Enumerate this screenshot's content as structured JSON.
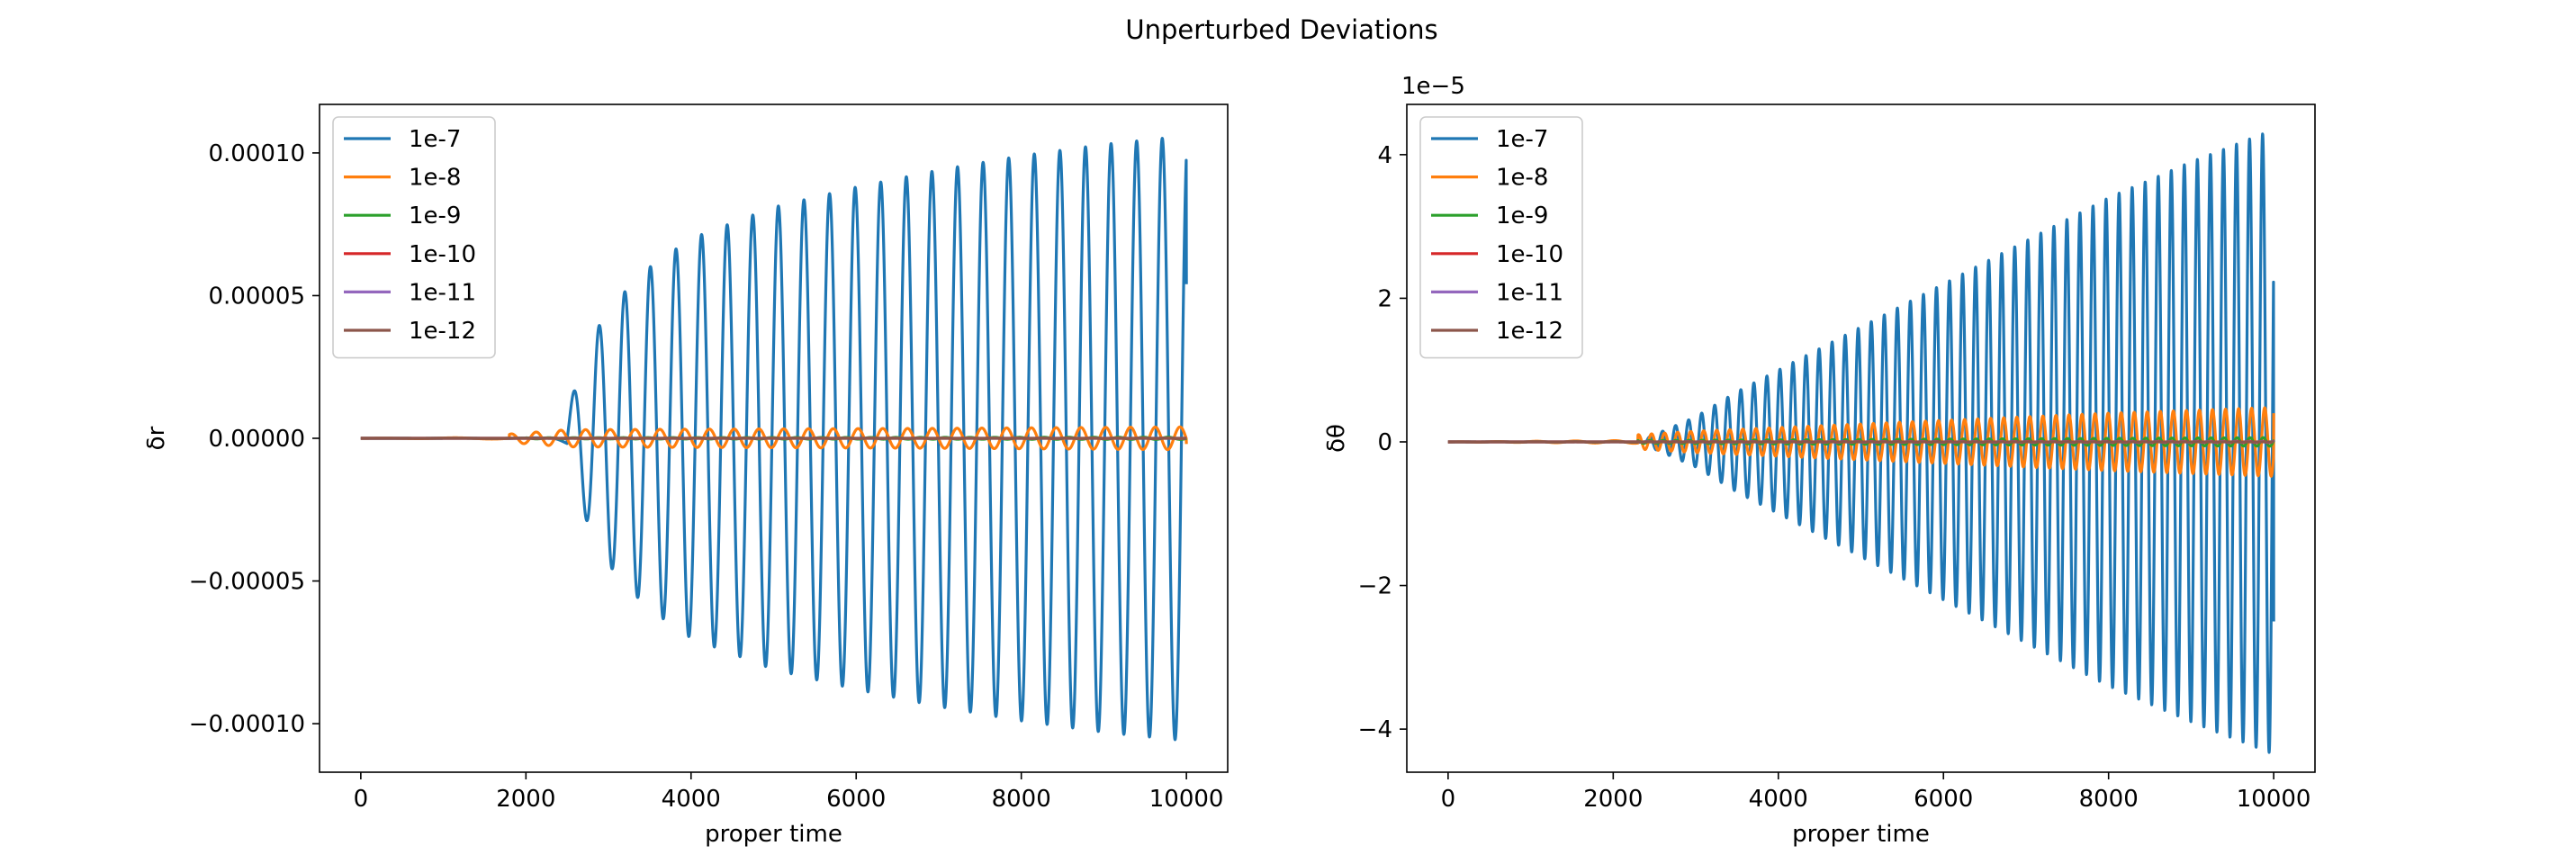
{
  "figure": {
    "suptitle": "Unperturbed Deviations"
  },
  "chart_data": [
    {
      "type": "line",
      "title": "",
      "xlabel": "proper time",
      "ylabel": "δr",
      "xlim": [
        -500,
        10500
      ],
      "ylim": [
        -0.000117,
        0.000117
      ],
      "xticks": [
        0,
        2000,
        4000,
        6000,
        8000,
        10000
      ],
      "xtick_labels": [
        "0",
        "2000",
        "4000",
        "6000",
        "8000",
        "10000"
      ],
      "yticks": [
        -0.0001,
        -5e-05,
        0,
        5e-05,
        0.0001
      ],
      "ytick_labels": [
        "−0.00010",
        "−0.00005",
        "0.00000",
        "0.00005",
        "0.00010"
      ],
      "offset_text": "",
      "legend_position": "upper-left",
      "grid": false,
      "series": [
        {
          "name": "1e-7",
          "color": "#1f77b4",
          "onset": 2500,
          "t_max": 10000,
          "period": 310,
          "phase": 0,
          "growth": 0.0,
          "amp_points": [
            [
              0,
              0
            ],
            [
              1500,
              2e-07
            ],
            [
              2300,
              1e-06
            ],
            [
              2500,
              1e-05
            ],
            [
              2850,
              3.8e-05
            ],
            [
              3150,
              5e-05
            ],
            [
              3500,
              6e-05
            ],
            [
              4000,
              7e-05
            ],
            [
              5000,
              8.1e-05
            ],
            [
              6000,
              8.8e-05
            ],
            [
              7000,
              9.4e-05
            ],
            [
              8000,
              9.9e-05
            ],
            [
              9000,
              0.000103
            ],
            [
              10000,
              0.000106
            ]
          ],
          "end_value": 5.4e-05
        },
        {
          "name": "1e-8",
          "color": "#ff7f0e",
          "onset": 1800,
          "t_max": 10000,
          "period": 300,
          "phase": 1.1,
          "amp_points": [
            [
              0,
              0
            ],
            [
              1800,
              1.5e-06
            ],
            [
              2500,
              3e-06
            ],
            [
              4000,
              3.2e-06
            ],
            [
              7000,
              3.5e-06
            ],
            [
              10000,
              4e-06
            ]
          ],
          "end_value": -2e-06
        },
        {
          "name": "1e-9",
          "color": "#2ca02c",
          "onset": 2000,
          "t_max": 10000,
          "period": 300,
          "phase": 2.0,
          "amp_points": [
            [
              0,
              0
            ],
            [
              2000,
              2e-07
            ],
            [
              10000,
              4e-07
            ]
          ],
          "end_value": 0
        },
        {
          "name": "1e-10",
          "color": "#d62728",
          "onset": 2000,
          "t_max": 10000,
          "period": 300,
          "phase": 2.5,
          "amp_points": [
            [
              0,
              0
            ],
            [
              10000,
              5e-08
            ]
          ],
          "end_value": 0
        },
        {
          "name": "1e-11",
          "color": "#9467bd",
          "onset": 2000,
          "t_max": 10000,
          "period": 300,
          "phase": 3.0,
          "amp_points": [
            [
              0,
              0
            ],
            [
              10000,
              1e-08
            ]
          ],
          "end_value": 0
        },
        {
          "name": "1e-12",
          "color": "#8c564b",
          "onset": 2000,
          "t_max": 10000,
          "period": 300,
          "phase": 3.5,
          "amp_points": [
            [
              0,
              0
            ],
            [
              10000,
              5e-09
            ]
          ],
          "end_value": 0
        }
      ]
    },
    {
      "type": "line",
      "title": "",
      "xlabel": "proper time",
      "ylabel": "δθ",
      "xlim": [
        -500,
        10500
      ],
      "ylim": [
        -4.6,
        4.7
      ],
      "xticks": [
        0,
        2000,
        4000,
        6000,
        8000,
        10000
      ],
      "xtick_labels": [
        "0",
        "2000",
        "4000",
        "6000",
        "8000",
        "10000"
      ],
      "yticks": [
        -4,
        -2,
        0,
        2,
        4
      ],
      "ytick_labels": [
        "−4",
        "−2",
        "0",
        "2",
        "4"
      ],
      "offset_text": "1e−5",
      "legend_position": "upper-left",
      "grid": false,
      "series": [
        {
          "name": "1e-7",
          "color": "#1f77b4",
          "onset": 2400,
          "t_max": 10000,
          "period": 158,
          "phase": 0,
          "amp_points": [
            [
              0,
              0
            ],
            [
              2400,
              0.05
            ],
            [
              3000,
              0.35
            ],
            [
              3500,
              0.7
            ],
            [
              4000,
              1.0
            ],
            [
              5000,
              1.6
            ],
            [
              6000,
              2.2
            ],
            [
              7000,
              2.8
            ],
            [
              8000,
              3.4
            ],
            [
              9000,
              3.9
            ],
            [
              10000,
              4.35
            ]
          ],
          "end_value": -2.5
        },
        {
          "name": "1e-8",
          "color": "#ff7f0e",
          "onset": 2300,
          "t_max": 10000,
          "period": 158,
          "phase": 1.3,
          "amp_points": [
            [
              0,
              0
            ],
            [
              2300,
              0.1
            ],
            [
              3000,
              0.15
            ],
            [
              4000,
              0.2
            ],
            [
              6000,
              0.3
            ],
            [
              8000,
              0.4
            ],
            [
              10000,
              0.48
            ]
          ],
          "end_value": 0.4
        },
        {
          "name": "1e-9",
          "color": "#2ca02c",
          "onset": 2300,
          "t_max": 10000,
          "period": 158,
          "phase": 2.0,
          "amp_points": [
            [
              0,
              0
            ],
            [
              2300,
              0.02
            ],
            [
              10000,
              0.06
            ]
          ],
          "end_value": 0
        },
        {
          "name": "1e-10",
          "color": "#d62728",
          "onset": 2300,
          "t_max": 10000,
          "period": 158,
          "phase": 2.5,
          "amp_points": [
            [
              0,
              0
            ],
            [
              10000,
              0.01
            ]
          ],
          "end_value": 0
        },
        {
          "name": "1e-11",
          "color": "#9467bd",
          "onset": 2300,
          "t_max": 10000,
          "period": 158,
          "phase": 3.0,
          "amp_points": [
            [
              0,
              0
            ],
            [
              10000,
              0.005
            ]
          ],
          "end_value": 0
        },
        {
          "name": "1e-12",
          "color": "#8c564b",
          "onset": 2300,
          "t_max": 10000,
          "period": 158,
          "phase": 3.5,
          "amp_points": [
            [
              0,
              0
            ],
            [
              10000,
              0.002
            ]
          ],
          "end_value": 0
        }
      ]
    }
  ]
}
